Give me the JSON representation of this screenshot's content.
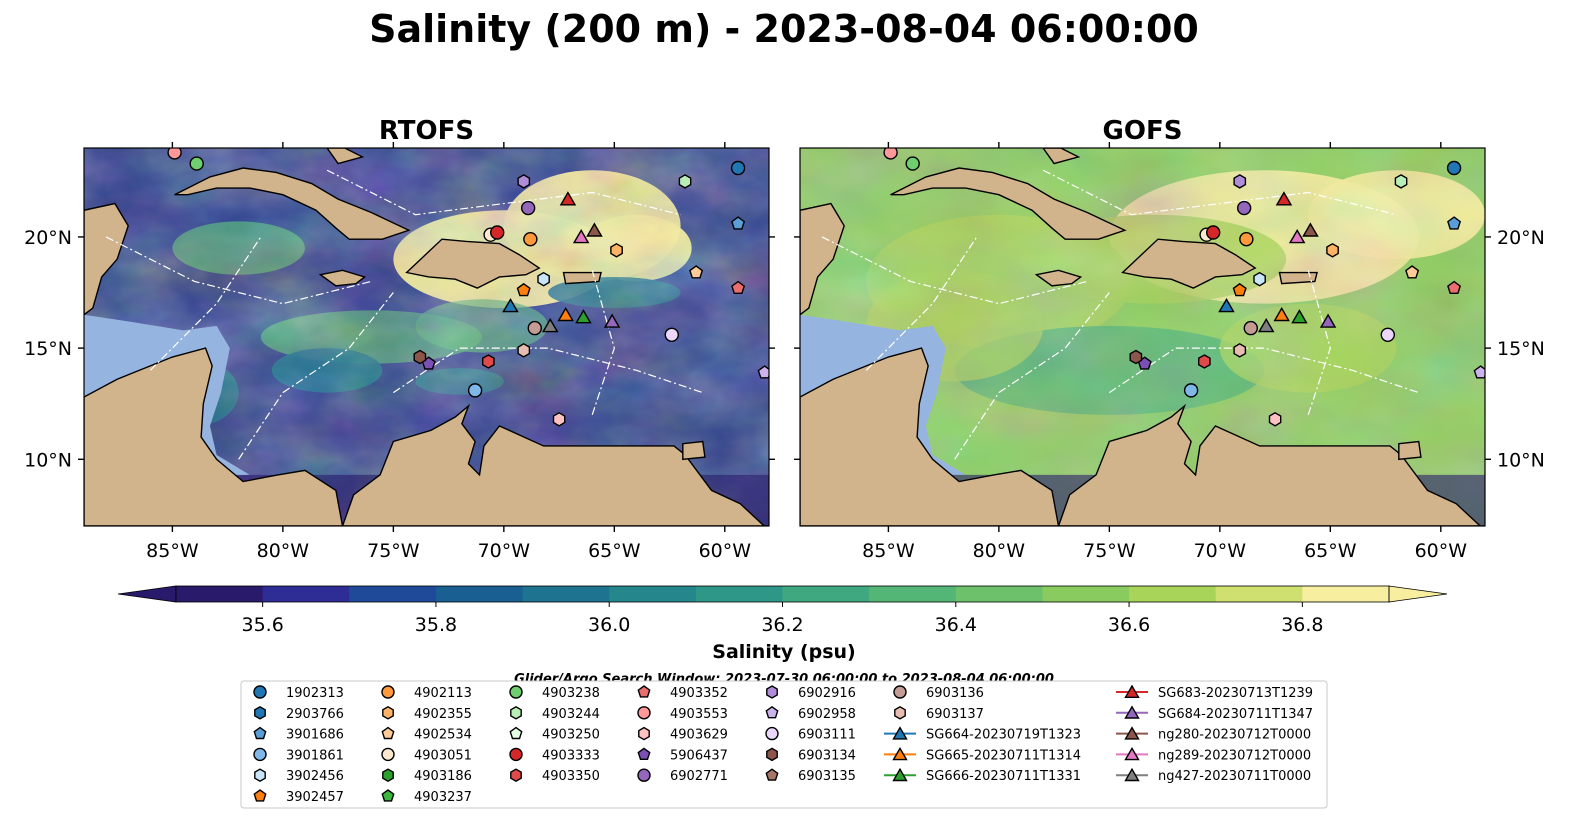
{
  "title": "Salinity (200 m) - 2023-08-04 06:00:00",
  "chart_data": {
    "type": "heatmap",
    "panels": [
      {
        "title": "RTOFS",
        "model": "RTOFS",
        "salinity_texture": "low"
      },
      {
        "title": "GOFS",
        "model": "GOFS",
        "salinity_texture": "high"
      }
    ],
    "xlim": [
      -89,
      -58
    ],
    "ylim": [
      7,
      24
    ],
    "xticks": [
      {
        "value": -85,
        "label": "85°W"
      },
      {
        "value": -80,
        "label": "80°W"
      },
      {
        "value": -75,
        "label": "75°W"
      },
      {
        "value": -70,
        "label": "70°W"
      },
      {
        "value": -65,
        "label": "65°W"
      },
      {
        "value": -60,
        "label": "60°W"
      }
    ],
    "yticks": [
      {
        "value": 10,
        "label": "10°N"
      },
      {
        "value": 15,
        "label": "15°N"
      },
      {
        "value": 20,
        "label": "20°N"
      }
    ],
    "colorbar": {
      "label": "Salinity (psu)",
      "min": 35.5,
      "max": 36.9,
      "extend": "both",
      "ticks": [
        {
          "value": 35.6,
          "label": "35.6"
        },
        {
          "value": 35.8,
          "label": "35.8"
        },
        {
          "value": 36.0,
          "label": "36.0"
        },
        {
          "value": 36.2,
          "label": "36.2"
        },
        {
          "value": 36.4,
          "label": "36.4"
        },
        {
          "value": 36.6,
          "label": "36.6"
        },
        {
          "value": 36.8,
          "label": "36.8"
        }
      ],
      "colors": [
        "#2a1a6b",
        "#2e2d96",
        "#1f4a9a",
        "#1a5f92",
        "#1d7390",
        "#25868c",
        "#2f9788",
        "#3fa880",
        "#54b676",
        "#6cc16a",
        "#89cb5e",
        "#a9d45a",
        "#cfe070",
        "#f8eea0"
      ]
    },
    "search_window": "Glider/Argo Search Window: 2023-07-30 06:00:00 to 2023-08-04 06:00:00",
    "land_color": "#d2b48c",
    "shelf_color": "#96b4e0",
    "observations": [
      {
        "name": "1902313",
        "marker": "circle",
        "color": "#1f77b4",
        "lon": -59.4,
        "lat": 23.1
      },
      {
        "name": "2903766",
        "marker": "hexagon",
        "color": "#1f77b4",
        "lon": null,
        "lat": null
      },
      {
        "name": "3901686",
        "marker": "pentagon",
        "color": "#5a9ed6",
        "lon": -59.4,
        "lat": 20.6
      },
      {
        "name": "3901861",
        "marker": "circle",
        "color": "#7fb8e8",
        "lon": -71.3,
        "lat": 13.1
      },
      {
        "name": "3902456",
        "marker": "hexagon",
        "color": "#c8e6f7",
        "lon": -68.2,
        "lat": 18.1
      },
      {
        "name": "3902457",
        "marker": "pentagon",
        "color": "#ff7f0e",
        "lon": -69.1,
        "lat": 17.6
      },
      {
        "name": "4902113",
        "marker": "circle",
        "color": "#ff9a3c",
        "lon": -68.8,
        "lat": 19.9
      },
      {
        "name": "4902355",
        "marker": "hexagon",
        "color": "#ffb366",
        "lon": -64.9,
        "lat": 19.4
      },
      {
        "name": "4902534",
        "marker": "pentagon",
        "color": "#ffcc99",
        "lon": -61.3,
        "lat": 18.4
      },
      {
        "name": "4903051",
        "marker": "circle",
        "color": "#fde9d0",
        "lon": -70.6,
        "lat": 20.1
      },
      {
        "name": "4903186",
        "marker": "hexagon",
        "color": "#2ca02c",
        "lon": null,
        "lat": null
      },
      {
        "name": "4903237",
        "marker": "pentagon",
        "color": "#3cb93c",
        "lon": null,
        "lat": null
      },
      {
        "name": "4903238",
        "marker": "circle",
        "color": "#6fcf6f",
        "lon": -83.9,
        "lat": 23.3
      },
      {
        "name": "4903244",
        "marker": "hexagon",
        "color": "#b7efb7",
        "lon": -61.8,
        "lat": 22.5
      },
      {
        "name": "4903250",
        "marker": "pentagon",
        "color": "#e4fbe4",
        "lon": null,
        "lat": null
      },
      {
        "name": "4903333",
        "marker": "circle",
        "color": "#d62728",
        "lon": -70.3,
        "lat": 20.2
      },
      {
        "name": "4903350",
        "marker": "hexagon",
        "color": "#e04a4a",
        "lon": -70.7,
        "lat": 14.4
      },
      {
        "name": "4903352",
        "marker": "pentagon",
        "color": "#eb6e6e",
        "lon": -59.4,
        "lat": 17.7
      },
      {
        "name": "4903553",
        "marker": "circle",
        "color": "#ff9999",
        "lon": -84.9,
        "lat": 23.8
      },
      {
        "name": "4903629",
        "marker": "hexagon",
        "color": "#ffc2c2",
        "lon": -67.5,
        "lat": 11.8
      },
      {
        "name": "5906437",
        "marker": "pentagon",
        "color": "#7b4fb3",
        "lon": -73.4,
        "lat": 14.3
      },
      {
        "name": "6902771",
        "marker": "circle",
        "color": "#9467bd",
        "lon": -68.9,
        "lat": 21.3
      },
      {
        "name": "6902916",
        "marker": "hexagon",
        "color": "#b08cd9",
        "lon": -69.1,
        "lat": 22.5
      },
      {
        "name": "6902958",
        "marker": "pentagon",
        "color": "#cdb3ec",
        "lon": -58.2,
        "lat": 13.9
      },
      {
        "name": "6903111",
        "marker": "circle",
        "color": "#ead7fb",
        "lon": -62.4,
        "lat": 15.6
      },
      {
        "name": "6903134",
        "marker": "hexagon",
        "color": "#8c564b",
        "lon": -73.8,
        "lat": 14.6
      },
      {
        "name": "6903135",
        "marker": "pentagon",
        "color": "#a57566",
        "lon": null,
        "lat": null
      },
      {
        "name": "6903136",
        "marker": "circle",
        "color": "#c49c94",
        "lon": -68.6,
        "lat": 15.9
      },
      {
        "name": "6903137",
        "marker": "hexagon",
        "color": "#e6bdb0",
        "lon": -69.1,
        "lat": 14.9
      },
      {
        "name": "SG664-20230719T1323",
        "marker": "triangle",
        "color": "#1f77b4",
        "lon": -69.7,
        "lat": 16.9
      },
      {
        "name": "SG665-20230711T1314",
        "marker": "triangle",
        "color": "#ff7f0e",
        "lon": -67.2,
        "lat": 16.5
      },
      {
        "name": "SG666-20230711T1331",
        "marker": "triangle",
        "color": "#2ca02c",
        "lon": -66.4,
        "lat": 16.4
      },
      {
        "name": "SG683-20230713T1239",
        "marker": "triangle",
        "color": "#d62728",
        "lon": -67.1,
        "lat": 21.7
      },
      {
        "name": "SG684-20230711T1347",
        "marker": "triangle",
        "color": "#9467bd",
        "lon": -65.1,
        "lat": 16.2
      },
      {
        "name": "ng280-20230712T0000",
        "marker": "triangle",
        "color": "#8c564b",
        "lon": -65.9,
        "lat": 20.3
      },
      {
        "name": "ng289-20230712T0000",
        "marker": "triangle",
        "color": "#e377c2",
        "lon": -66.5,
        "lat": 20.0
      },
      {
        "name": "ng427-20230711T0000",
        "marker": "triangle",
        "color": "#7f7f7f",
        "lon": -67.9,
        "lat": 16.0
      }
    ]
  }
}
